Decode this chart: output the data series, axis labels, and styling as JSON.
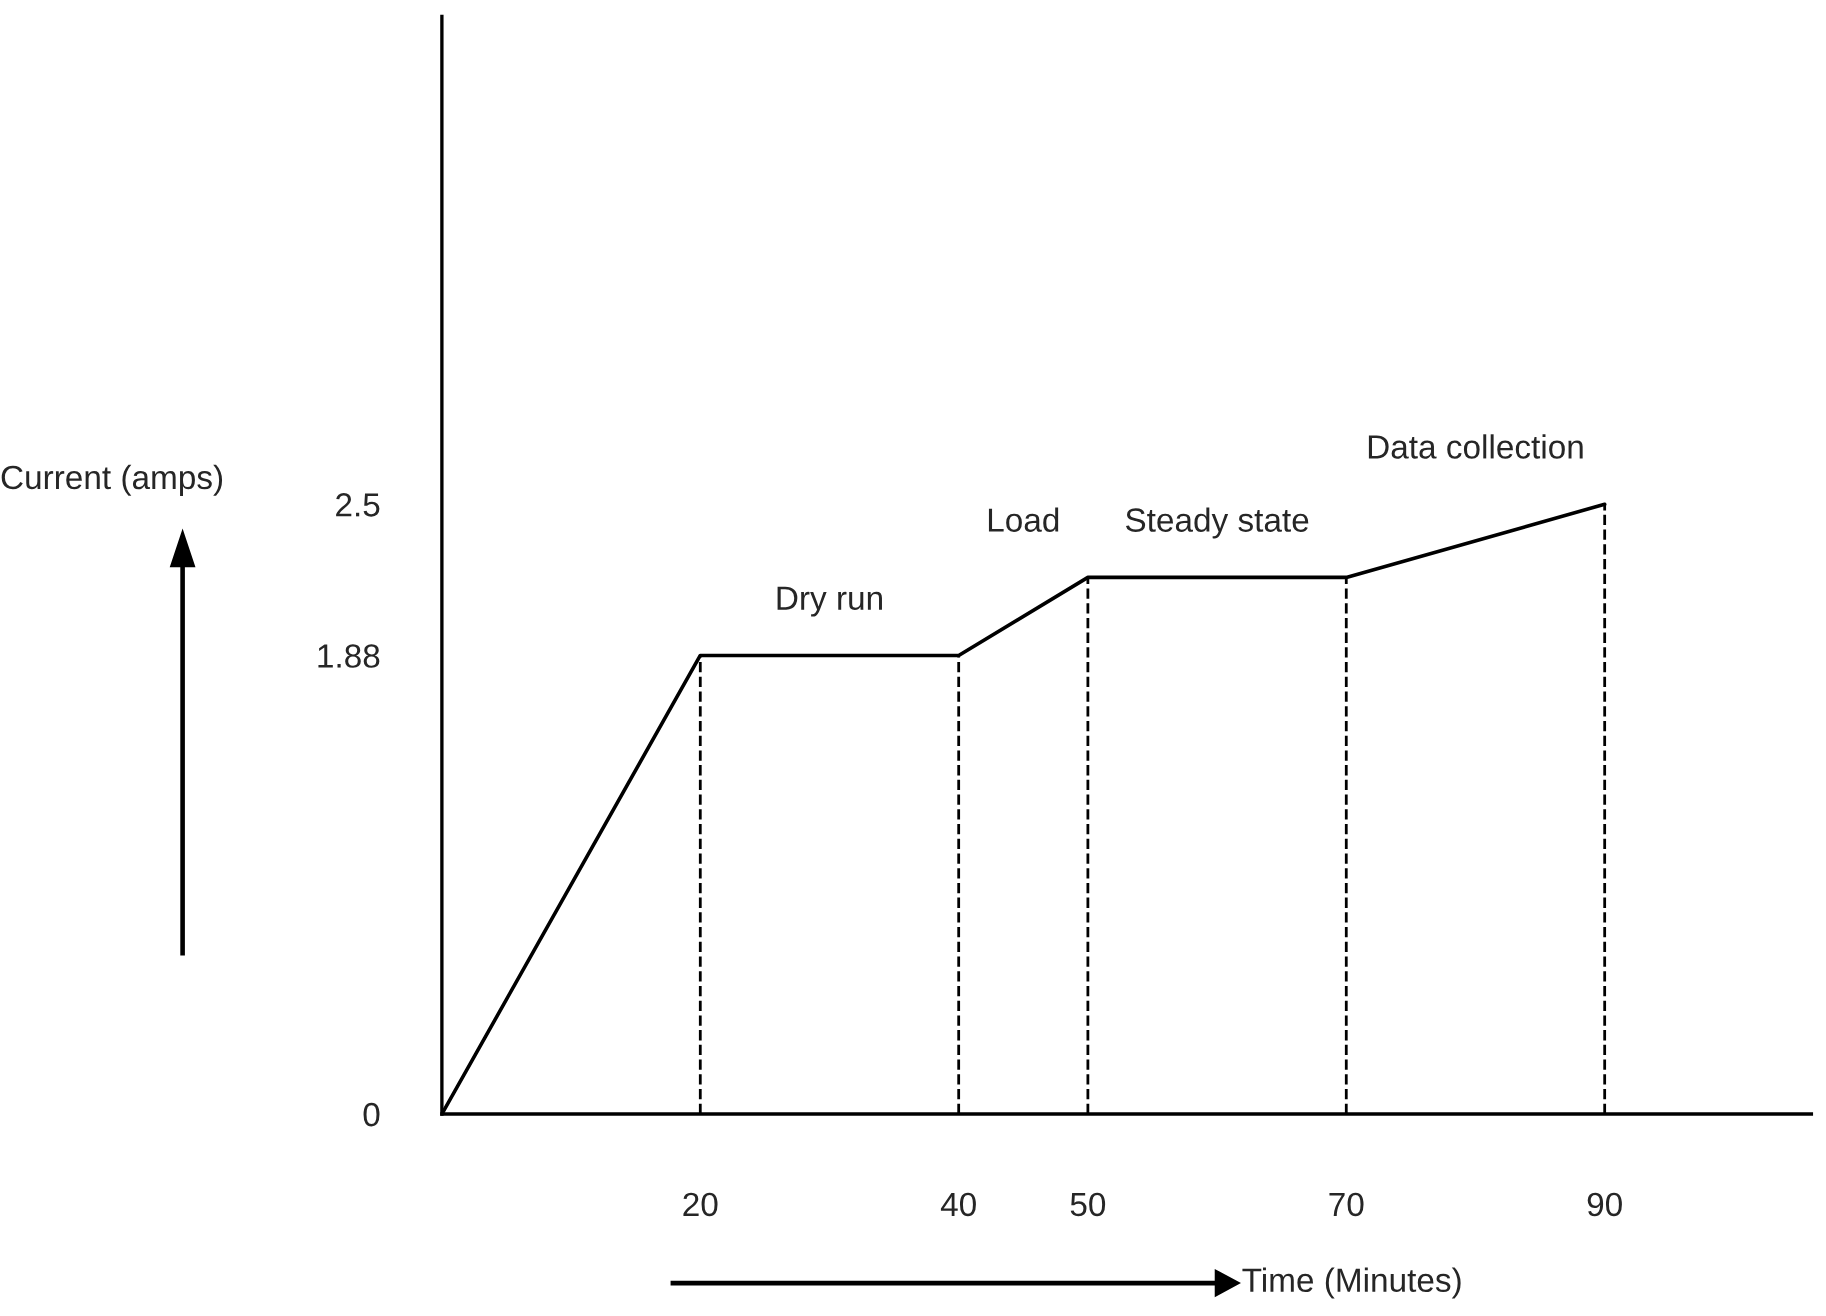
{
  "chart_data": {
    "type": "line",
    "xlabel": "Time (Minutes)",
    "ylabel": "Current (amps)",
    "x": [
      0,
      20,
      40,
      50,
      70,
      90
    ],
    "series": [
      {
        "color": "#000000",
        "values": [
          0,
          1.88,
          1.88,
          2.2,
          2.2,
          2.5
        ]
      }
    ],
    "xlim": [
      0,
      106
    ],
    "ylim": [
      0,
      4.5
    ],
    "xticks": [
      20,
      40,
      50,
      70,
      90
    ],
    "yticks": [
      0,
      1.88,
      2.5
    ],
    "grid": false,
    "marker": "none",
    "line_style": "solid",
    "ref_lines": [
      {
        "axis": "x",
        "value": 20,
        "line_style": "dashed",
        "color": "#000000"
      },
      {
        "axis": "x",
        "value": 40,
        "line_style": "dashed",
        "color": "#000000"
      },
      {
        "axis": "x",
        "value": 50,
        "line_style": "dashed",
        "color": "#000000"
      },
      {
        "axis": "x",
        "value": 70,
        "line_style": "dashed",
        "color": "#000000"
      },
      {
        "axis": "x",
        "value": 90,
        "line_style": "dashed",
        "color": "#000000"
      }
    ],
    "annotations": [
      "Dry run",
      "Load",
      "Steady state",
      "Data collection"
    ]
  }
}
